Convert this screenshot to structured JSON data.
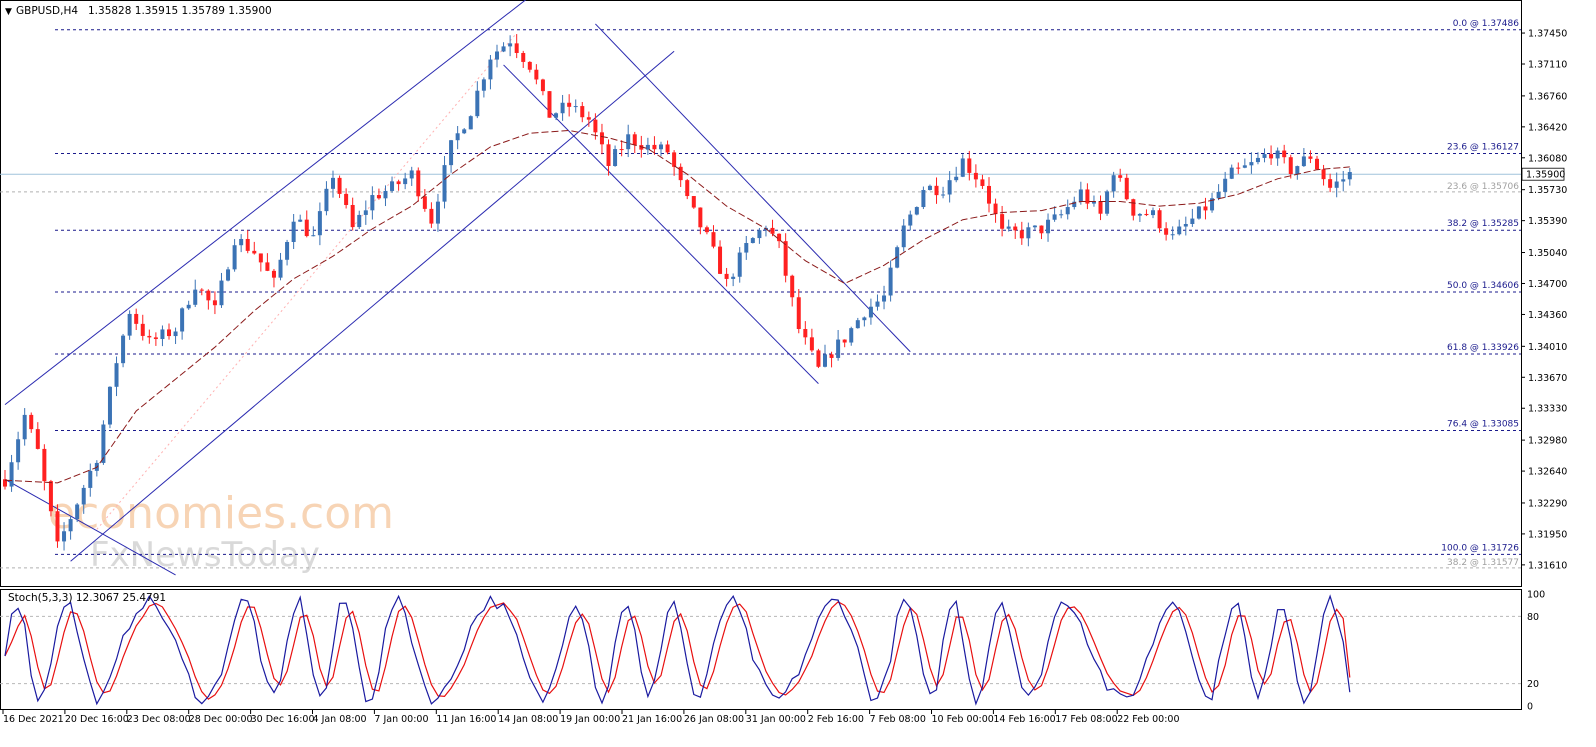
{
  "header": {
    "symbol_timeframe": "GBPUSD,H4",
    "ohlc": "1.35828 1.35915 1.35789 1.35900",
    "indicator_label": "Stoch(5,3,3) 12.3067 25.4791"
  },
  "watermark": {
    "line1": "economies.com",
    "line2": "FxNewsToday"
  },
  "colors": {
    "bull": "#3b73b5",
    "bear": "#ff2020",
    "level": "#1a1a8c",
    "channel": "#2a2ab0",
    "ma": "#8b1a1a",
    "stoch_main": "#1a1aa0",
    "stoch_signal": "#e81010",
    "current_price_line": "#a0c4dc",
    "grid": "#c8c8c8"
  },
  "chart_data": [
    {
      "type": "candlestick",
      "title": "GBPUSD,H4",
      "ylim": [
        1.314,
        1.3778
      ],
      "price_ticks": [
        "1.37450",
        "1.37110",
        "1.36760",
        "1.36420",
        "1.36080",
        "1.35730",
        "1.35390",
        "1.35040",
        "1.34700",
        "1.34360",
        "1.34010",
        "1.33670",
        "1.33330",
        "1.32980",
        "1.32640",
        "1.32290",
        "1.31950",
        "1.31610"
      ],
      "current_price": "1.35900",
      "x_labels": [
        "16 Dec 2021",
        "20 Dec 16:00",
        "23 Dec 08:00",
        "28 Dec 00:00",
        "30 Dec 16:00",
        "4 Jan 08:00",
        "7 Jan 00:00",
        "11 Jan 16:00",
        "14 Jan 08:00",
        "19 Jan 00:00",
        "21 Jan 16:00",
        "26 Jan 08:00",
        "31 Jan 00:00",
        "2 Feb 16:00",
        "7 Feb 08:00",
        "10 Feb 00:00",
        "14 Feb 16:00",
        "17 Feb 08:00",
        "22 Feb 00:00"
      ],
      "fibonacci": [
        {
          "label": "0.0 @ 1.37486",
          "price": 1.37486
        },
        {
          "label": "23.6 @ 1.36127",
          "price": 1.36127
        },
        {
          "label": "38.2 @ 1.35285",
          "price": 1.35285
        },
        {
          "label": "50.0 @ 1.34606",
          "price": 1.34606
        },
        {
          "label": "61.8 @ 1.33926",
          "price": 1.33926
        },
        {
          "label": "76.4 @ 1.33085",
          "price": 1.33085
        },
        {
          "label": "100.0 @ 1.31726",
          "price": 1.31726
        }
      ],
      "secondary_fibonacci": [
        {
          "label": "23.6 @ 1.35706",
          "price": 1.35706
        },
        {
          "label": "38.2 @ 1.31577",
          "price": 1.31577
        }
      ],
      "path_points": [
        [
          0,
          1.3255
        ],
        [
          3,
          1.3325
        ],
        [
          5,
          1.3285
        ],
        [
          8,
          1.318
        ],
        [
          11,
          1.323
        ],
        [
          14,
          1.328
        ],
        [
          17,
          1.3385
        ],
        [
          19,
          1.344
        ],
        [
          22,
          1.3405
        ],
        [
          26,
          1.342
        ],
        [
          29,
          1.347
        ],
        [
          32,
          1.344
        ],
        [
          35,
          1.352
        ],
        [
          38,
          1.3505
        ],
        [
          41,
          1.347
        ],
        [
          44,
          1.3545
        ],
        [
          47,
          1.352
        ],
        [
          50,
          1.359
        ],
        [
          53,
          1.353
        ],
        [
          56,
          1.3565
        ],
        [
          59,
          1.3575
        ],
        [
          62,
          1.359
        ],
        [
          65,
          1.354
        ],
        [
          68,
          1.362
        ],
        [
          71,
          1.366
        ],
        [
          74,
          1.372
        ],
        [
          77,
          1.3738
        ],
        [
          80,
          1.371
        ],
        [
          83,
          1.3655
        ],
        [
          86,
          1.3665
        ],
        [
          89,
          1.365
        ],
        [
          92,
          1.36
        ],
        [
          95,
          1.363
        ],
        [
          98,
          1.362
        ],
        [
          101,
          1.3615
        ],
        [
          104,
          1.356
        ],
        [
          107,
          1.352
        ],
        [
          110,
          1.347
        ],
        [
          113,
          1.351
        ],
        [
          116,
          1.3535
        ],
        [
          118,
          1.351
        ],
        [
          121,
          1.342
        ],
        [
          124,
          1.3375
        ],
        [
          126,
          1.3395
        ],
        [
          128,
          1.341
        ],
        [
          131,
          1.344
        ],
        [
          134,
          1.3455
        ],
        [
          137,
          1.353
        ],
        [
          140,
          1.3575
        ],
        [
          143,
          1.3575
        ],
        [
          146,
          1.3605
        ],
        [
          149,
          1.358
        ],
        [
          152,
          1.3525
        ],
        [
          155,
          1.3525
        ],
        [
          158,
          1.353
        ],
        [
          161,
          1.3545
        ],
        [
          164,
          1.357
        ],
        [
          167,
          1.3545
        ],
        [
          169,
          1.3595
        ],
        [
          172,
          1.355
        ],
        [
          175,
          1.3545
        ],
        [
          178,
          1.352
        ],
        [
          181,
          1.354
        ],
        [
          184,
          1.356
        ],
        [
          187,
          1.359
        ],
        [
          190,
          1.36
        ],
        [
          193,
          1.3615
        ],
        [
          196,
          1.3595
        ],
        [
          199,
          1.361
        ],
        [
          202,
          1.3575
        ],
        [
          205,
          1.359
        ]
      ],
      "moving_average": [
        [
          0,
          1.3254
        ],
        [
          8,
          1.3251
        ],
        [
          14,
          1.3268
        ],
        [
          20,
          1.333
        ],
        [
          26,
          1.3365
        ],
        [
          32,
          1.34
        ],
        [
          38,
          1.344
        ],
        [
          44,
          1.3475
        ],
        [
          50,
          1.35
        ],
        [
          56,
          1.353
        ],
        [
          62,
          1.3555
        ],
        [
          68,
          1.359
        ],
        [
          74,
          1.362
        ],
        [
          80,
          1.3635
        ],
        [
          86,
          1.3638
        ],
        [
          92,
          1.363
        ],
        [
          98,
          1.3618
        ],
        [
          104,
          1.359
        ],
        [
          110,
          1.3555
        ],
        [
          116,
          1.353
        ],
        [
          122,
          1.3495
        ],
        [
          128,
          1.347
        ],
        [
          134,
          1.349
        ],
        [
          140,
          1.3518
        ],
        [
          146,
          1.354
        ],
        [
          152,
          1.3548
        ],
        [
          158,
          1.355
        ],
        [
          164,
          1.356
        ],
        [
          170,
          1.356
        ],
        [
          176,
          1.3555
        ],
        [
          182,
          1.3558
        ],
        [
          188,
          1.3568
        ],
        [
          194,
          1.3585
        ],
        [
          200,
          1.3595
        ],
        [
          205,
          1.3598
        ]
      ],
      "channels": [
        {
          "name": "rising-upper",
          "p1": [
            0,
            1.3337
          ],
          "p2": [
            80,
            1.3785
          ]
        },
        {
          "name": "rising-lower",
          "p1": [
            10,
            1.3165
          ],
          "p2": [
            102,
            1.3725
          ]
        },
        {
          "name": "falling-upper",
          "p1": [
            90,
            1.3755
          ],
          "p2": [
            138,
            1.3395
          ]
        },
        {
          "name": "falling-lower",
          "p1": [
            76,
            1.371
          ],
          "p2": [
            124,
            1.336
          ]
        },
        {
          "name": "old-falling",
          "p1": [
            0,
            1.3255
          ],
          "p2": [
            26,
            1.315
          ]
        }
      ]
    },
    {
      "type": "line",
      "title": "Stoch(5,3,3) 12.3067 25.4791",
      "ylim": [
        0,
        100
      ],
      "levels": [
        80,
        20
      ],
      "ticks": [
        "100",
        "80",
        "20",
        "0"
      ],
      "main_last": 12.3067,
      "signal_last": 25.4791
    }
  ]
}
